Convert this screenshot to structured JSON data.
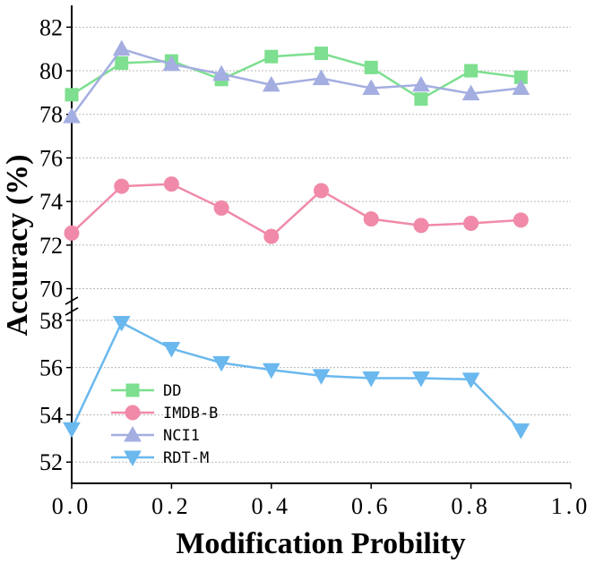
{
  "chart_data": {
    "type": "line",
    "title": "",
    "xlabel": "Modification Probility",
    "ylabel": "Accuracy (%)",
    "xlim": [
      0.0,
      1.0
    ],
    "x_ticks": [
      "0.0",
      "0.2",
      "0.4",
      "0.6",
      "0.8",
      "1.0"
    ],
    "broken_y_axis": true,
    "upper_panel": {
      "ylim": [
        69.2,
        83.0
      ],
      "y_ticks": [
        "70",
        "72",
        "74",
        "76",
        "78",
        "80",
        "82"
      ]
    },
    "lower_panel": {
      "ylim": [
        51.1,
        58.6
      ],
      "y_ticks": [
        "52",
        "54",
        "56",
        "58"
      ]
    },
    "grid": "horizontal dotted",
    "legend_position": "lower-left",
    "series": [
      {
        "name": "DD",
        "color": "#7ddf8f",
        "marker": "square",
        "panel": "upper",
        "x": [
          0.0,
          0.1,
          0.2,
          0.3,
          0.4,
          0.5,
          0.6,
          0.7,
          0.8,
          0.9
        ],
        "y": [
          78.9,
          80.35,
          80.45,
          79.6,
          80.65,
          80.8,
          80.15,
          78.7,
          80.0,
          79.7
        ]
      },
      {
        "name": "IMDB-B",
        "color": "#f08aa8",
        "marker": "circle",
        "panel": "upper",
        "x": [
          0.0,
          0.1,
          0.2,
          0.3,
          0.4,
          0.5,
          0.6,
          0.7,
          0.8,
          0.9
        ],
        "y": [
          72.55,
          74.7,
          74.8,
          73.7,
          72.4,
          74.5,
          73.2,
          72.9,
          73.0,
          73.15
        ]
      },
      {
        "name": "NCI1",
        "color": "#a4aee0",
        "marker": "triangle-up",
        "panel": "upper",
        "x": [
          0.0,
          0.1,
          0.2,
          0.3,
          0.4,
          0.5,
          0.6,
          0.7,
          0.8,
          0.9
        ],
        "y": [
          77.9,
          81.0,
          80.3,
          79.85,
          79.35,
          79.65,
          79.2,
          79.35,
          78.95,
          79.2
        ]
      },
      {
        "name": "RDT-M",
        "color": "#6ab8ee",
        "marker": "triangle-down",
        "panel": "lower",
        "x": [
          0.0,
          0.1,
          0.2,
          0.3,
          0.4,
          0.5,
          0.6,
          0.7,
          0.8,
          0.9
        ],
        "y": [
          53.4,
          57.9,
          56.8,
          56.2,
          55.9,
          55.65,
          55.55,
          55.55,
          55.5,
          53.35
        ]
      }
    ]
  }
}
